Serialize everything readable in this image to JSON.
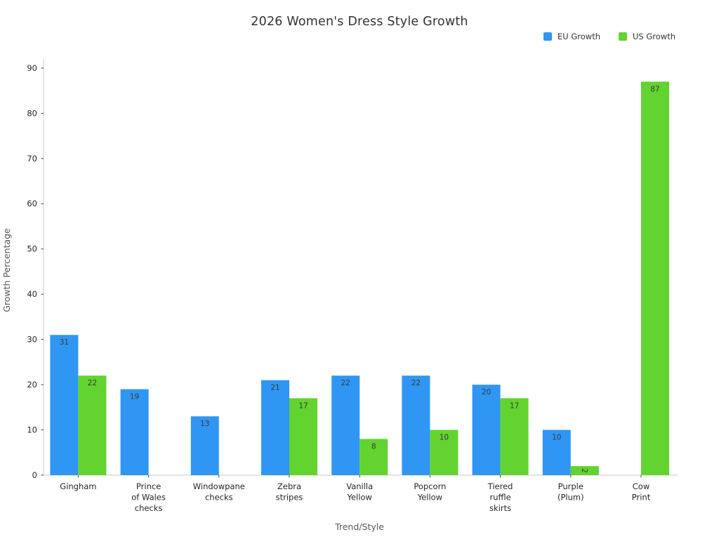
{
  "figure": {
    "title": "2026 Women's Dress Style Growth",
    "background_color": "#ffffff"
  },
  "legend": {
    "position": "top-right",
    "items": [
      {
        "label": "EU Growth",
        "color": "#2f96f3"
      },
      {
        "label": "US Growth",
        "color": "#62d32f"
      }
    ]
  },
  "chart_data": {
    "type": "bar",
    "title": "2026 Women's Dress Style Growth",
    "xlabel": "Trend/Style",
    "ylabel": "Growth Percentage",
    "ylim": [
      0,
      90
    ],
    "yticks": [
      0,
      10,
      20,
      30,
      40,
      50,
      60,
      70,
      80,
      90
    ],
    "grid": false,
    "legend_position": "top-right",
    "bar_value_labels": true,
    "categories": [
      "Gingham",
      "Prince\nof Wales\nchecks",
      "Windowpane\nchecks",
      "Zebra\nstripes",
      "Vanilla\nYellow",
      "Popcorn\nYellow",
      "Tiered\nruffle\nskirts",
      "Purple\n(Plum)",
      "Cow\nPrint"
    ],
    "series": [
      {
        "name": "EU Growth",
        "color": "#2f96f3",
        "values": [
          31,
          19,
          13,
          21,
          22,
          22,
          20,
          10,
          0
        ]
      },
      {
        "name": "US Growth",
        "color": "#62d32f",
        "values": [
          22,
          0,
          0,
          17,
          8,
          10,
          17,
          2,
          87
        ]
      }
    ]
  },
  "style": {
    "spine_color": "#c9c9c9",
    "tick_color": "#333333",
    "tick_label_color": "#262626",
    "axis_label_color": "#595959",
    "value_label_color": "#3a3a3a",
    "title_color": "#333333"
  }
}
